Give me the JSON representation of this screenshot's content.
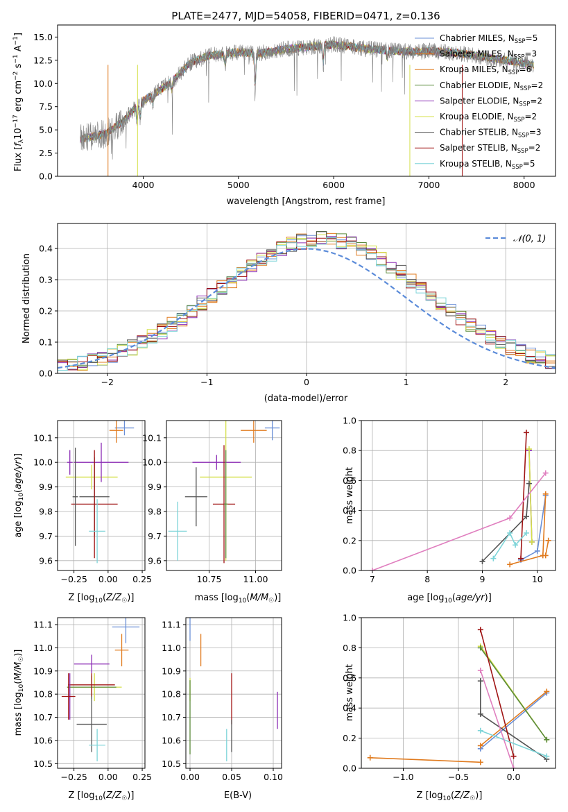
{
  "colors": {
    "Chabrier MILES": "#6a8fd6",
    "Salpeter MILES": "#e07b1f",
    "Kroupa MILES": "#e07b1f",
    "Chabrier ELODIE": "#5a8a3a",
    "Salpeter ELODIE": "#8c2db5",
    "Kroupa ELODIE": "#d4e04a",
    "Chabrier STELIB": "#555555",
    "Salpeter STELIB": "#a01515",
    "Kroupa STELIB": "#7dd4d8"
  },
  "chart_data": [
    {
      "id": "spectrum",
      "type": "line",
      "title": "PLATE=2477, MJD=54058, FIBERID=0471, z=0.136",
      "xlabel": "wavelength [Angstrom, rest frame]",
      "ylabel": "Flux [f_λ 10^-17 erg cm^-2 s^-1 A^-1]",
      "xlim": [
        3100,
        8330
      ],
      "ylim": [
        0,
        16.3
      ],
      "xticks": [
        4000,
        5000,
        6000,
        7000,
        8000
      ],
      "yticks": [
        0.0,
        2.5,
        5.0,
        7.5,
        10.0,
        12.5,
        15.0
      ],
      "data_range_x": [
        3340,
        8100
      ],
      "continuum": [
        [
          3340,
          4.0
        ],
        [
          3600,
          4.6
        ],
        [
          3800,
          6.0
        ],
        [
          3950,
          7.8
        ],
        [
          4100,
          8.8
        ],
        [
          4300,
          10.2
        ],
        [
          4500,
          12.3
        ],
        [
          4700,
          13.0
        ],
        [
          5000,
          13.4
        ],
        [
          5200,
          13.2
        ],
        [
          5500,
          13.7
        ],
        [
          5800,
          14.0
        ],
        [
          6000,
          14.2
        ],
        [
          6300,
          13.8
        ],
        [
          6500,
          13.6
        ],
        [
          6800,
          13.4
        ],
        [
          7000,
          13.5
        ],
        [
          7300,
          13.3
        ],
        [
          7600,
          12.8
        ],
        [
          7800,
          12.5
        ],
        [
          8100,
          12.0
        ]
      ],
      "legend": [
        {
          "label": "Chabrier MILES, N_SSP=5",
          "text": "Chabrier MILES, N",
          "sub": "SSP",
          "tail": "=5"
        },
        {
          "label": "Salpeter MILES, N_SSP=3",
          "text": "Salpeter MILES, N",
          "sub": "SSP",
          "tail": "=3"
        },
        {
          "label": "Kroupa MILES, N_SSP=6",
          "text": "Kroupa MILES, N",
          "sub": "SSP",
          "tail": "=6"
        },
        {
          "label": "Chabrier ELODIE, N_SSP=2",
          "text": "Chabrier ELODIE, N",
          "sub": "SSP",
          "tail": "=2"
        },
        {
          "label": "Salpeter ELODIE, N_SSP=2",
          "text": "Salpeter ELODIE, N",
          "sub": "SSP",
          "tail": "=2"
        },
        {
          "label": "Kroupa ELODIE, N_SSP=2",
          "text": "Kroupa ELODIE, N",
          "sub": "SSP",
          "tail": "=2"
        },
        {
          "label": "Chabrier STELIB, N_SSP=3",
          "text": "Chabrier STELIB, N",
          "sub": "SSP",
          "tail": "=3"
        },
        {
          "label": "Salpeter STELIB, N_SSP=2",
          "text": "Salpeter STELIB, N",
          "sub": "SSP",
          "tail": "=2"
        },
        {
          "label": "Kroupa STELIB, N_SSP=5",
          "text": "Kroupa STELIB, N",
          "sub": "SSP",
          "tail": "=5"
        }
      ],
      "series": [
        {
          "name": "Chabrier MILES",
          "color": "#6a8fd6"
        },
        {
          "name": "Salpeter MILES",
          "color": "#e07b1f"
        },
        {
          "name": "Kroupa MILES",
          "color": "#e07b1f"
        },
        {
          "name": "Chabrier ELODIE",
          "color": "#5a8a3a"
        },
        {
          "name": "Salpeter ELODIE",
          "color": "#8c2db5"
        },
        {
          "name": "Kroupa ELODIE",
          "color": "#d4e04a"
        },
        {
          "name": "Chabrier STELIB",
          "color": "#555555"
        },
        {
          "name": "Salpeter STELIB",
          "color": "#a01515"
        },
        {
          "name": "Kroupa STELIB",
          "color": "#7dd4d8"
        }
      ]
    },
    {
      "id": "residuals",
      "type": "line",
      "xlabel": "(data-model)/error",
      "ylabel": "Normed distribution",
      "xlim": [
        -2.5,
        2.5
      ],
      "ylim": [
        0,
        0.48
      ],
      "xticks": [
        -2,
        -1,
        0,
        1,
        2
      ],
      "yticks": [
        0.0,
        0.1,
        0.2,
        0.3,
        0.4
      ],
      "grid": true,
      "legend": [
        {
          "label": "N(0,1)",
          "color": "#5b8bd9",
          "style": "dashed"
        }
      ],
      "gaussian": {
        "mean": 0,
        "sigma": 1
      }
    },
    {
      "id": "age_vs_Z",
      "type": "scatter",
      "xlabel": "Z [log10(Z/Z☉)]",
      "ylabel": "age [log10(age/yr)]",
      "xlim": [
        -0.37,
        0.27
      ],
      "ylim": [
        9.56,
        10.17
      ],
      "xticks": [
        -0.25,
        0.0,
        0.25
      ],
      "xticklabels": [
        "−0.25",
        "0.00",
        "0.25"
      ],
      "yticks": [
        9.6,
        9.7,
        9.8,
        9.9,
        10.0,
        10.1
      ],
      "grid": true,
      "points": [
        {
          "series": "Chabrier MILES",
          "x": 0.12,
          "y": 10.14,
          "xerr": 0.07,
          "yerr": 0.03
        },
        {
          "series": "Salpeter MILES",
          "x": 0.06,
          "y": 10.13,
          "xerr": 0.05,
          "yerr": 0.05
        },
        {
          "series": "Kroupa ELODIE",
          "x": -0.12,
          "y": 9.94,
          "xerr": 0.19,
          "yerr": 0.05
        },
        {
          "series": "Salpeter ELODIE",
          "x": -0.05,
          "y": 10.0,
          "xerr": 0.2,
          "yerr": 0.08
        },
        {
          "series": "Chabrier STELIB",
          "x": -0.1,
          "y": 9.86,
          "xerr": 0.11,
          "yerr": 0.16
        },
        {
          "series": "Salpeter STELIB",
          "x": -0.1,
          "y": 9.83,
          "xerr": 0.17,
          "yerr": 0.22
        },
        {
          "series": "Kroupa STELIB",
          "x": -0.08,
          "y": 9.72,
          "xerr": 0.06,
          "yerr": 0.13
        },
        {
          "series": "Salpeter ELODIE",
          "x": -0.28,
          "y": 10.0,
          "xerr": 0.02,
          "yerr": 0.05
        },
        {
          "series": "Chabrier STELIB",
          "x": -0.24,
          "y": 9.86,
          "xerr": 0.02,
          "yerr": 0.2
        }
      ]
    },
    {
      "id": "age_vs_mass",
      "type": "scatter",
      "xlabel": "mass [log10(M/M☉)]",
      "ylabel": "",
      "xlim": [
        10.52,
        11.14
      ],
      "ylim": [
        9.56,
        10.17
      ],
      "xticks": [
        10.5,
        10.75,
        11.0
      ],
      "xticklabels": [
        "10.50",
        "10.75",
        "11.00"
      ],
      "yticks": [
        9.6,
        9.7,
        9.8,
        9.9,
        10.0,
        10.1
      ],
      "grid": true,
      "points": [
        {
          "series": "Chabrier MILES",
          "x": 11.09,
          "y": 10.14,
          "xerr": 0.04,
          "yerr": 0.05
        },
        {
          "series": "Salpeter MILES",
          "x": 10.99,
          "y": 10.13,
          "xerr": 0.07,
          "yerr": 0.05
        },
        {
          "series": "Kroupa ELODIE",
          "x": 10.84,
          "y": 9.94,
          "xerr": 0.14,
          "yerr": 0.34
        },
        {
          "series": "Salpeter ELODIE",
          "x": 10.79,
          "y": 10.0,
          "xerr": 0.13,
          "yerr": 0.03
        },
        {
          "series": "Chabrier STELIB",
          "x": 10.68,
          "y": 9.86,
          "xerr": 0.06,
          "yerr": 0.12
        },
        {
          "series": "Salpeter STELIB",
          "x": 10.83,
          "y": 9.83,
          "xerr": 0.06,
          "yerr": 0.24
        },
        {
          "series": "Kroupa STELIB",
          "x": 10.58,
          "y": 9.72,
          "xerr": 0.05,
          "yerr": 0.12
        },
        {
          "series": "Chabrier ELODIE",
          "x": 10.84,
          "y": 9.83,
          "xerr": 0.01,
          "yerr": 0.22
        }
      ]
    },
    {
      "id": "weight_vs_age",
      "type": "line",
      "xlabel": "age [log10(age/yr)]",
      "ylabel": "mass weight",
      "xlim": [
        6.8,
        10.33
      ],
      "ylim": [
        0,
        1.0
      ],
      "xticks": [
        7,
        8,
        9,
        10
      ],
      "yticks": [
        0.0,
        0.2,
        0.4,
        0.6,
        0.8,
        1.0
      ],
      "grid": true,
      "series": [
        {
          "name": "Chabrier MILES",
          "color": "#6a8fd6",
          "points": [
            [
              9.7,
              0.07
            ],
            [
              10.0,
              0.13
            ],
            [
              10.15,
              0.5
            ]
          ]
        },
        {
          "name": "Salpeter MILES",
          "color": "#e07b1f",
          "points": [
            [
              9.5,
              0.04
            ],
            [
              10.1,
              0.1
            ],
            [
              10.15,
              0.51
            ]
          ]
        },
        {
          "name": "Kroupa MILES",
          "color": "#e07b1f",
          "points": [
            [
              10.15,
              0.1
            ],
            [
              10.2,
              0.2
            ]
          ]
        },
        {
          "name": "Salpeter ELODIE",
          "color": "#8c2db5",
          "points": [
            [
              9.85,
              0.8
            ],
            [
              9.9,
              0.19
            ]
          ]
        },
        {
          "name": "Kroupa ELODIE",
          "color": "#d4e04a",
          "points": [
            [
              9.85,
              0.81
            ],
            [
              9.9,
              0.19
            ]
          ]
        },
        {
          "name": "Chabrier STELIB",
          "color": "#555555",
          "points": [
            [
              9.0,
              0.06
            ],
            [
              9.8,
              0.36
            ],
            [
              9.85,
              0.58
            ]
          ]
        },
        {
          "name": "Salpeter STELIB",
          "color": "#a01515",
          "points": [
            [
              9.7,
              0.08
            ],
            [
              9.8,
              0.92
            ]
          ]
        },
        {
          "name": "Kroupa STELIB",
          "color": "#7dd4d8",
          "points": [
            [
              9.2,
              0.08
            ],
            [
              9.5,
              0.25
            ],
            [
              9.6,
              0.17
            ],
            [
              9.8,
              0.25
            ]
          ]
        },
        {
          "name": "Salpeter ELODIE",
          "color": "#e07fbf",
          "points": [
            [
              7.0,
              0.0
            ],
            [
              9.5,
              0.35
            ],
            [
              10.15,
              0.65
            ]
          ]
        }
      ]
    },
    {
      "id": "mass_vs_Z",
      "type": "scatter",
      "xlabel": "Z [log10(Z/Z☉)]",
      "ylabel": "mass [log10(M/M☉)]",
      "xlim": [
        -0.37,
        0.27
      ],
      "ylim": [
        10.48,
        11.13
      ],
      "xticks": [
        -0.25,
        0.0,
        0.25
      ],
      "xticklabels": [
        "−0.25",
        "0.00",
        "0.25"
      ],
      "yticks": [
        10.5,
        10.6,
        10.7,
        10.8,
        10.9,
        11.0,
        11.1
      ],
      "grid": true,
      "points": [
        {
          "series": "Chabrier MILES",
          "x": 0.13,
          "y": 11.09,
          "xerr": 0.1,
          "yerr": 0.07
        },
        {
          "series": "Salpeter MILES",
          "x": 0.1,
          "y": 10.99,
          "xerr": 0.05,
          "yerr": 0.07
        },
        {
          "series": "Salpeter ELODIE",
          "x": -0.12,
          "y": 10.93,
          "xerr": 0.13,
          "yerr": 0.04
        },
        {
          "series": "Kroupa ELODIE",
          "x": -0.1,
          "y": 10.83,
          "xerr": 0.2,
          "yerr": 0.06
        },
        {
          "series": "Chabrier ELODIE",
          "x": -0.12,
          "y": 10.83,
          "xerr": 0.18,
          "yerr": 0.05
        },
        {
          "series": "Salpeter STELIB",
          "x": -0.12,
          "y": 10.84,
          "xerr": 0.17,
          "yerr": 0.05
        },
        {
          "series": "Salpeter ELODIE",
          "x": -0.28,
          "y": 10.79,
          "xerr": 0.02,
          "yerr": 0.1
        },
        {
          "series": "Salpeter STELIB",
          "x": -0.29,
          "y": 10.79,
          "xerr": 0.05,
          "yerr": 0.1
        },
        {
          "series": "Chabrier STELIB",
          "x": -0.12,
          "y": 10.67,
          "xerr": 0.11,
          "yerr": 0.12
        },
        {
          "series": "Kroupa STELIB",
          "x": -0.08,
          "y": 10.58,
          "xerr": 0.06,
          "yerr": 0.07
        }
      ]
    },
    {
      "id": "mass_vs_ebv",
      "type": "scatter",
      "xlabel": "E(B-V)",
      "ylabel": "",
      "xlim": [
        -0.005,
        0.11
      ],
      "ylim": [
        10.48,
        11.13
      ],
      "xticks": [
        0.0,
        0.05,
        0.1
      ],
      "xticklabels": [
        "0.00",
        "0.05",
        "0.10"
      ],
      "yticks": [
        10.5,
        10.6,
        10.7,
        10.8,
        10.9,
        11.0,
        11.1
      ],
      "grid": true,
      "points": [
        {
          "series": "Chabrier MILES",
          "x": 0.0,
          "y": 11.08,
          "xerr": 0.0,
          "yerr": 0.05
        },
        {
          "series": "Salpeter MILES",
          "x": 0.013,
          "y": 10.99,
          "xerr": 0.0,
          "yerr": 0.07
        },
        {
          "series": "Kroupa ELODIE",
          "x": 0.0,
          "y": 10.82,
          "xerr": 0.0,
          "yerr": 0.05
        },
        {
          "series": "Chabrier ELODIE",
          "x": 0.0,
          "y": 10.7,
          "xerr": 0.0,
          "yerr": 0.16
        },
        {
          "series": "Salpeter STELIB",
          "x": 0.05,
          "y": 10.78,
          "xerr": 0.0,
          "yerr": 0.11
        },
        {
          "series": "Chabrier STELIB",
          "x": 0.05,
          "y": 10.62,
          "xerr": 0.0,
          "yerr": 0.07
        },
        {
          "series": "Kroupa STELIB",
          "x": 0.044,
          "y": 10.58,
          "xerr": 0.0,
          "yerr": 0.07
        },
        {
          "series": "Salpeter ELODIE",
          "x": 0.105,
          "y": 10.73,
          "xerr": 0.0,
          "yerr": 0.08
        }
      ]
    },
    {
      "id": "weight_vs_Z",
      "type": "line",
      "xlabel": "Z [log10(Z/Z☉)]",
      "ylabel": "mass weight",
      "xlim": [
        -1.38,
        0.38
      ],
      "ylim": [
        0,
        1.0
      ],
      "xticks": [
        -1.0,
        -0.5,
        0.0
      ],
      "xticklabels": [
        "−1.0",
        "−0.5",
        "0.0"
      ],
      "yticks": [
        0.0,
        0.2,
        0.4,
        0.6,
        0.8,
        1.0
      ],
      "grid": true,
      "series": [
        {
          "name": "Chabrier MILES",
          "color": "#6a8fd6",
          "points": [
            [
              -0.3,
              0.13
            ],
            [
              0.3,
              0.5
            ]
          ]
        },
        {
          "name": "Salpeter MILES",
          "color": "#e07b1f",
          "points": [
            [
              -1.3,
              0.07
            ],
            [
              -0.3,
              0.04
            ]
          ]
        },
        {
          "name": "Kroupa MILES",
          "color": "#e07b1f",
          "points": [
            [
              -0.3,
              0.15
            ],
            [
              0.3,
              0.51
            ]
          ]
        },
        {
          "name": "Kroupa ELODIE",
          "color": "#d4e04a",
          "points": [
            [
              -0.3,
              0.81
            ],
            [
              0.3,
              0.19
            ]
          ]
        },
        {
          "name": "Chabrier ELODIE",
          "color": "#5a8a3a",
          "points": [
            [
              -0.3,
              0.8
            ],
            [
              0.3,
              0.19
            ]
          ]
        },
        {
          "name": "Chabrier STELIB",
          "color": "#555555",
          "points": [
            [
              -0.3,
              0.58
            ],
            [
              -0.3,
              0.36
            ],
            [
              0.3,
              0.06
            ]
          ]
        },
        {
          "name": "Salpeter STELIB",
          "color": "#a01515",
          "points": [
            [
              -0.3,
              0.92
            ],
            [
              0.0,
              0.08
            ]
          ]
        },
        {
          "name": "Kroupa STELIB",
          "color": "#7dd4d8",
          "points": [
            [
              -0.3,
              0.25
            ],
            [
              0.3,
              0.08
            ]
          ]
        },
        {
          "name": "Salpeter ELODIE",
          "color": "#e07fbf",
          "points": [
            [
              -0.3,
              0.65
            ],
            [
              0.0,
              0.0
            ]
          ]
        }
      ]
    }
  ]
}
